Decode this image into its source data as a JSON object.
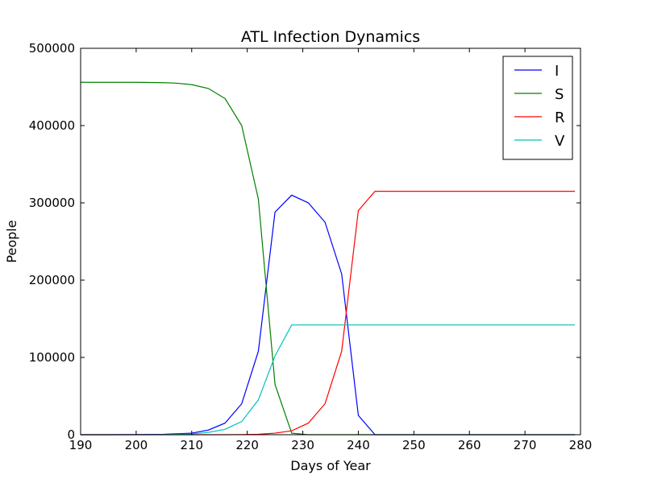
{
  "chart_data": {
    "type": "line",
    "title": "ATL Infection Dynamics",
    "xlabel": "Days of Year",
    "ylabel": "People",
    "xlim": [
      190,
      280
    ],
    "ylim": [
      0,
      500000
    ],
    "xticks": [
      "190",
      "200",
      "210",
      "220",
      "230",
      "240",
      "250",
      "260",
      "270",
      "280"
    ],
    "yticks": [
      "0",
      "100000",
      "200000",
      "300000",
      "400000",
      "500000"
    ],
    "grid": false,
    "legend_position": "top-right",
    "x": [
      190,
      193,
      196,
      199,
      202,
      205,
      208,
      211,
      214,
      217,
      220,
      223,
      226,
      229,
      232,
      235,
      238,
      241,
      244,
      247,
      250,
      253,
      256,
      259,
      262,
      265,
      268,
      271,
      274,
      277,
      280
    ],
    "series": [
      {
        "name": "I",
        "color": "#0000ff",
        "x": [
          190,
          195,
          200,
          205,
          210,
          213,
          216,
          219,
          222,
          225,
          228,
          231,
          234,
          237,
          240,
          243,
          279
        ],
        "values": [
          0,
          0,
          100,
          500,
          2000,
          6000,
          15000,
          40000,
          108000,
          288000,
          310000,
          300000,
          275000,
          208000,
          25000,
          0,
          0
        ]
      },
      {
        "name": "S",
        "color": "#008000",
        "x": [
          190,
          200,
          205,
          207,
          210,
          213,
          216,
          219,
          222,
          225,
          228,
          231,
          279
        ],
        "values": [
          456000,
          456000,
          455500,
          455000,
          453000,
          448000,
          435000,
          400000,
          305000,
          65000,
          2000,
          0,
          0
        ]
      },
      {
        "name": "R",
        "color": "#ff0000",
        "x": [
          190,
          216,
          219,
          222,
          225,
          228,
          231,
          234,
          237,
          240,
          243,
          279
        ],
        "values": [
          0,
          0,
          200,
          500,
          2000,
          5000,
          15000,
          40000,
          108000,
          290000,
          315000,
          315000
        ]
      },
      {
        "name": "V",
        "color": "#00bfbf",
        "x": [
          190,
          200,
          205,
          210,
          213,
          216,
          219,
          222,
          225,
          228,
          279
        ],
        "values": [
          0,
          0,
          200,
          1000,
          3000,
          7000,
          17000,
          45000,
          102000,
          142000,
          142000
        ]
      }
    ]
  }
}
